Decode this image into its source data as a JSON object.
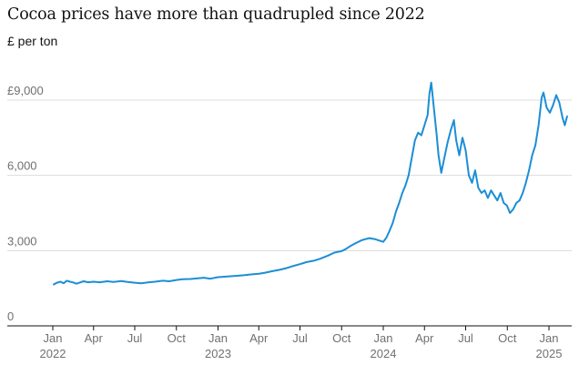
{
  "header": {
    "title": "Cocoa prices have more than quadrupled since 2022",
    "subtitle": "£ per ton"
  },
  "colors": {
    "line": "#1b8ed6",
    "grid": "#dcdcdc",
    "axis": "#121212",
    "tick_text": "#707070"
  },
  "chart_data": {
    "type": "line",
    "title": "Cocoa prices have more than quadrupled since 2022",
    "ylabel": "£ per ton",
    "ylim": [
      0,
      9500
    ],
    "y_ticks": [
      {
        "value": 0,
        "label": "0"
      },
      {
        "value": 3000,
        "label": "3,000"
      },
      {
        "value": 6000,
        "label": "6,000"
      },
      {
        "value": 9000,
        "label": "£9,000"
      }
    ],
    "x_ticks": [
      {
        "date": "2022-01-01",
        "label": "Jan",
        "year": "2022"
      },
      {
        "date": "2022-04-01",
        "label": "Apr",
        "year": ""
      },
      {
        "date": "2022-07-01",
        "label": "Jul",
        "year": ""
      },
      {
        "date": "2022-10-01",
        "label": "Oct",
        "year": ""
      },
      {
        "date": "2023-01-01",
        "label": "Jan",
        "year": "2023"
      },
      {
        "date": "2023-04-01",
        "label": "Apr",
        "year": ""
      },
      {
        "date": "2023-07-01",
        "label": "Jul",
        "year": ""
      },
      {
        "date": "2023-10-01",
        "label": "Oct",
        "year": ""
      },
      {
        "date": "2024-01-01",
        "label": "Jan",
        "year": "2024"
      },
      {
        "date": "2024-04-01",
        "label": "Apr",
        "year": ""
      },
      {
        "date": "2024-07-01",
        "label": "Jul",
        "year": ""
      },
      {
        "date": "2024-10-01",
        "label": "Oct",
        "year": ""
      },
      {
        "date": "2025-01-01",
        "label": "Jan",
        "year": "2025"
      }
    ],
    "series": [
      {
        "values": [
          [
            "2022-01-03",
            1650
          ],
          [
            "2022-01-10",
            1720
          ],
          [
            "2022-01-18",
            1760
          ],
          [
            "2022-01-25",
            1700
          ],
          [
            "2022-02-01",
            1800
          ],
          [
            "2022-02-08",
            1760
          ],
          [
            "2022-02-15",
            1730
          ],
          [
            "2022-02-22",
            1680
          ],
          [
            "2022-03-01",
            1720
          ],
          [
            "2022-03-10",
            1780
          ],
          [
            "2022-03-20",
            1740
          ],
          [
            "2022-04-01",
            1760
          ],
          [
            "2022-04-15",
            1740
          ],
          [
            "2022-05-01",
            1780
          ],
          [
            "2022-05-15",
            1750
          ],
          [
            "2022-06-01",
            1790
          ],
          [
            "2022-06-15",
            1750
          ],
          [
            "2022-07-01",
            1720
          ],
          [
            "2022-07-15",
            1700
          ],
          [
            "2022-08-01",
            1740
          ],
          [
            "2022-08-15",
            1760
          ],
          [
            "2022-09-01",
            1800
          ],
          [
            "2022-09-15",
            1780
          ],
          [
            "2022-10-01",
            1830
          ],
          [
            "2022-10-15",
            1860
          ],
          [
            "2022-11-01",
            1870
          ],
          [
            "2022-11-15",
            1890
          ],
          [
            "2022-12-01",
            1920
          ],
          [
            "2022-12-15",
            1880
          ],
          [
            "2023-01-01",
            1940
          ],
          [
            "2023-01-15",
            1960
          ],
          [
            "2023-02-01",
            1980
          ],
          [
            "2023-02-15",
            2000
          ],
          [
            "2023-03-01",
            2020
          ],
          [
            "2023-03-15",
            2050
          ],
          [
            "2023-04-01",
            2080
          ],
          [
            "2023-04-15",
            2120
          ],
          [
            "2023-05-01",
            2180
          ],
          [
            "2023-05-15",
            2230
          ],
          [
            "2023-06-01",
            2300
          ],
          [
            "2023-06-15",
            2380
          ],
          [
            "2023-07-01",
            2460
          ],
          [
            "2023-07-15",
            2540
          ],
          [
            "2023-08-01",
            2600
          ],
          [
            "2023-08-15",
            2680
          ],
          [
            "2023-09-01",
            2800
          ],
          [
            "2023-09-15",
            2920
          ],
          [
            "2023-10-01",
            2980
          ],
          [
            "2023-10-10",
            3060
          ],
          [
            "2023-10-20",
            3180
          ],
          [
            "2023-11-01",
            3300
          ],
          [
            "2023-11-15",
            3420
          ],
          [
            "2023-12-01",
            3500
          ],
          [
            "2023-12-15",
            3450
          ],
          [
            "2024-01-01",
            3350
          ],
          [
            "2024-01-08",
            3520
          ],
          [
            "2024-01-15",
            3800
          ],
          [
            "2024-01-22",
            4100
          ],
          [
            "2024-01-29",
            4550
          ],
          [
            "2024-02-05",
            4900
          ],
          [
            "2024-02-12",
            5300
          ],
          [
            "2024-02-19",
            5600
          ],
          [
            "2024-02-26",
            6000
          ],
          [
            "2024-03-04",
            6700
          ],
          [
            "2024-03-11",
            7400
          ],
          [
            "2024-03-18",
            7700
          ],
          [
            "2024-03-25",
            7600
          ],
          [
            "2024-04-01",
            8000
          ],
          [
            "2024-04-08",
            8400
          ],
          [
            "2024-04-12",
            9250
          ],
          [
            "2024-04-16",
            9700
          ],
          [
            "2024-04-20",
            9000
          ],
          [
            "2024-04-24",
            8300
          ],
          [
            "2024-04-28",
            7600
          ],
          [
            "2024-05-02",
            6800
          ],
          [
            "2024-05-08",
            6100
          ],
          [
            "2024-05-15",
            6700
          ],
          [
            "2024-05-22",
            7300
          ],
          [
            "2024-05-29",
            7800
          ],
          [
            "2024-06-05",
            8200
          ],
          [
            "2024-06-10",
            7400
          ],
          [
            "2024-06-17",
            6800
          ],
          [
            "2024-06-24",
            7500
          ],
          [
            "2024-07-01",
            7000
          ],
          [
            "2024-07-08",
            6000
          ],
          [
            "2024-07-15",
            5700
          ],
          [
            "2024-07-22",
            6200
          ],
          [
            "2024-07-29",
            5500
          ],
          [
            "2024-08-05",
            5300
          ],
          [
            "2024-08-12",
            5400
          ],
          [
            "2024-08-19",
            5100
          ],
          [
            "2024-08-26",
            5400
          ],
          [
            "2024-09-02",
            5200
          ],
          [
            "2024-09-09",
            5000
          ],
          [
            "2024-09-16",
            5300
          ],
          [
            "2024-09-23",
            4900
          ],
          [
            "2024-09-30",
            4800
          ],
          [
            "2024-10-07",
            4500
          ],
          [
            "2024-10-14",
            4650
          ],
          [
            "2024-10-21",
            4900
          ],
          [
            "2024-10-28",
            5000
          ],
          [
            "2024-11-04",
            5300
          ],
          [
            "2024-11-11",
            5700
          ],
          [
            "2024-11-18",
            6200
          ],
          [
            "2024-11-25",
            6800
          ],
          [
            "2024-12-02",
            7200
          ],
          [
            "2024-12-09",
            8000
          ],
          [
            "2024-12-16",
            9100
          ],
          [
            "2024-12-20",
            9300
          ],
          [
            "2024-12-27",
            8700
          ],
          [
            "2025-01-03",
            8500
          ],
          [
            "2025-01-10",
            8800
          ],
          [
            "2025-01-17",
            9200
          ],
          [
            "2025-01-24",
            8900
          ],
          [
            "2025-01-31",
            8300
          ],
          [
            "2025-02-05",
            8000
          ],
          [
            "2025-02-10",
            8350
          ]
        ]
      }
    ]
  }
}
